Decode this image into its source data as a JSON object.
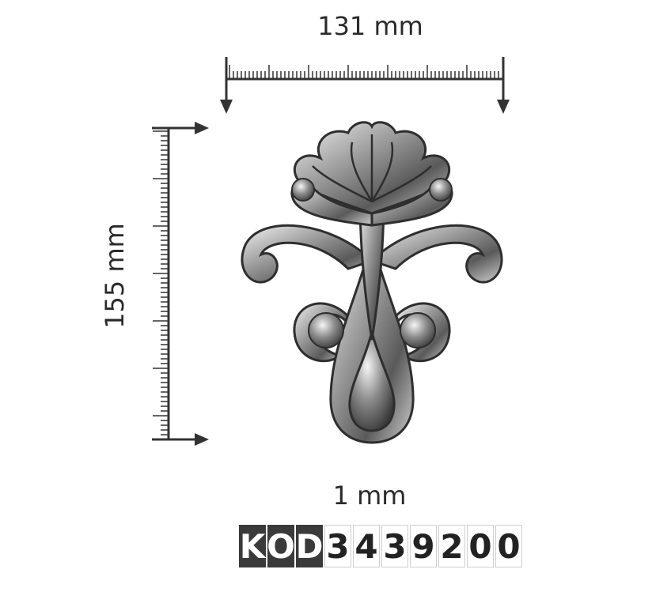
{
  "dimensions": {
    "width_label": "131 mm",
    "height_label": "155 mm",
    "thickness_label": "1 mm"
  },
  "product_code": {
    "prefix_chars": [
      "K",
      "O",
      "D"
    ],
    "number_chars": [
      "3",
      "4",
      "3",
      "9",
      "2",
      "0",
      "0"
    ]
  },
  "ornament": {
    "description_icon": "cast-iron-fleur-ornament"
  },
  "colors": {
    "ink": "#2a2a2a",
    "metal_light": "#e8e8e8",
    "metal_dark": "#3c3c3c",
    "code_prefix_bg": "#3a3a3a"
  }
}
